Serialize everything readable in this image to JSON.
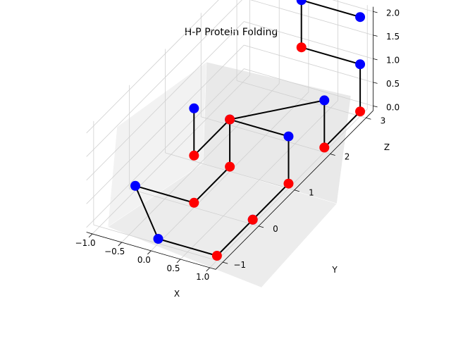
{
  "chart_data": {
    "type": "scatter",
    "subtype": "3d-line-scatter",
    "title": "H-P Protein Folding",
    "xlabel": "X",
    "ylabel": "Y",
    "zlabel": "Z",
    "xlim": [
      -1.1,
      1.1
    ],
    "ylim": [
      -1.2,
      3.2
    ],
    "zlim": [
      -0.1,
      2.1
    ],
    "x_ticks": [
      "−1.0",
      "−0.5",
      "0.0",
      "0.5",
      "1.0"
    ],
    "y_ticks": [
      "−1",
      "0",
      "1",
      "2",
      "3"
    ],
    "z_ticks": [
      "0.0",
      "0.5",
      "1.0",
      "1.5",
      "2.0"
    ],
    "grid": true,
    "colors": {
      "H": "#0000ff",
      "P": "#ff0000",
      "backbone": "#000000"
    },
    "residues": [
      {
        "x": 0,
        "y": 0,
        "z": 2,
        "type": "H"
      },
      {
        "x": 0,
        "y": 0,
        "z": 1,
        "type": "P"
      },
      {
        "x": 0,
        "y": 1,
        "z": 1,
        "type": "H"
      },
      {
        "x": 0,
        "y": 1,
        "z": 0,
        "type": "P"
      },
      {
        "x": 0,
        "y": 0,
        "z": 0,
        "type": "P"
      },
      {
        "x": -1,
        "y": 0,
        "z": 0,
        "type": "H"
      },
      {
        "x": 0,
        "y": -1,
        "z": 0,
        "type": "H"
      },
      {
        "x": 1,
        "y": -1,
        "z": 0,
        "type": "P"
      },
      {
        "x": 1,
        "y": 0,
        "z": 0,
        "type": "H"
      },
      {
        "x": 1,
        "y": 0,
        "z": 0,
        "type": "P"
      },
      {
        "x": 1,
        "y": 1,
        "z": 0,
        "type": "P"
      },
      {
        "x": 1,
        "y": 1,
        "z": 1,
        "type": "H"
      },
      {
        "x": 0,
        "y": 1,
        "z": 1,
        "type": "P"
      },
      {
        "x": 1,
        "y": 2,
        "z": 1,
        "type": "H"
      },
      {
        "x": 1,
        "y": 2,
        "z": 0,
        "type": "P"
      },
      {
        "x": 1,
        "y": 3,
        "z": 0,
        "type": "P"
      },
      {
        "x": 1,
        "y": 3,
        "z": 1,
        "type": "H"
      },
      {
        "x": 0,
        "y": 3,
        "z": 1,
        "type": "P"
      },
      {
        "x": 0,
        "y": 3,
        "z": 2,
        "type": "H"
      },
      {
        "x": 1,
        "y": 3,
        "z": 2,
        "type": "H"
      }
    ]
  }
}
